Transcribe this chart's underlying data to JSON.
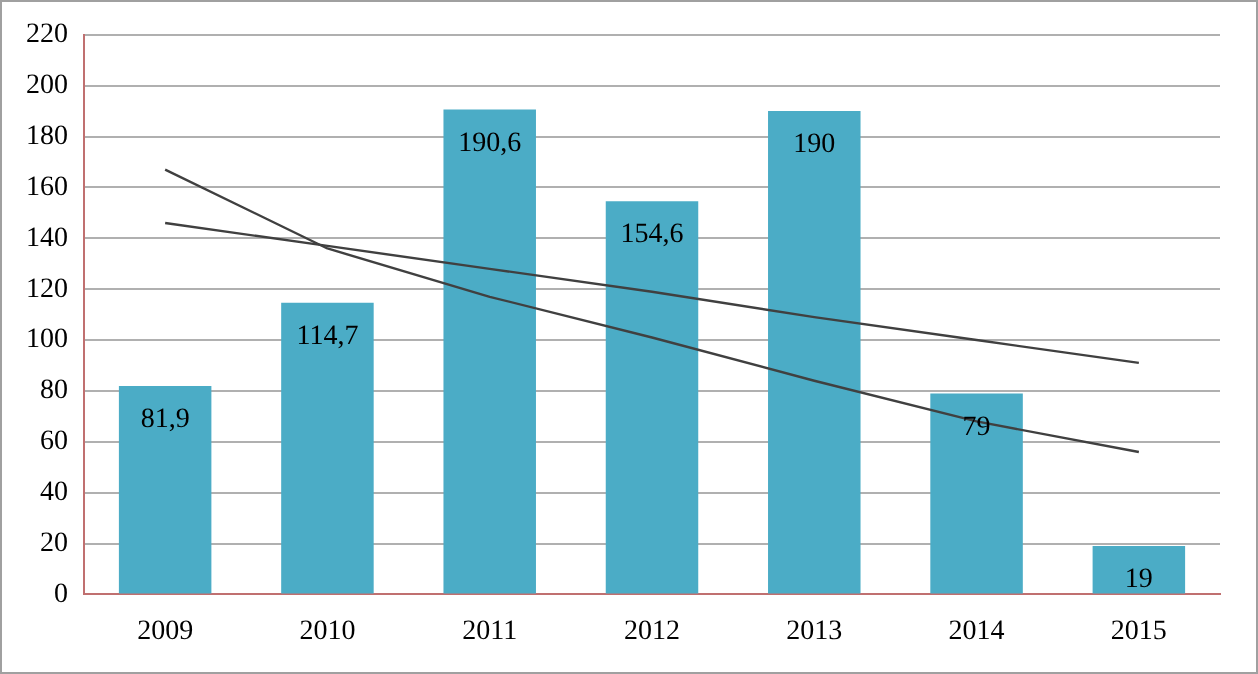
{
  "chart_data": {
    "type": "bar",
    "categories": [
      "2009",
      "2010",
      "2011",
      "2012",
      "2013",
      "2014",
      "2015"
    ],
    "series": [
      {
        "color": "#4bacc6",
        "values": [
          81.9,
          114.7,
          190.6,
          154.6,
          190,
          79,
          19
        ],
        "value_labels": [
          "81,9",
          "114,7",
          "190,6",
          "154,6",
          "190",
          "79",
          "19"
        ]
      },
      {
        "type": "line",
        "color": "#404040",
        "values": [
          146,
          137,
          128,
          119,
          109,
          100,
          91
        ]
      },
      {
        "type": "line",
        "color": "#404040",
        "values": [
          167,
          136,
          117,
          101,
          84,
          68,
          56
        ]
      }
    ],
    "ylim": [
      0,
      220
    ],
    "yticks": [
      0,
      20,
      40,
      60,
      80,
      100,
      120,
      140,
      160,
      180,
      200,
      220
    ],
    "grid": "y",
    "legend": false,
    "marker": "none",
    "line_style": "solid"
  }
}
